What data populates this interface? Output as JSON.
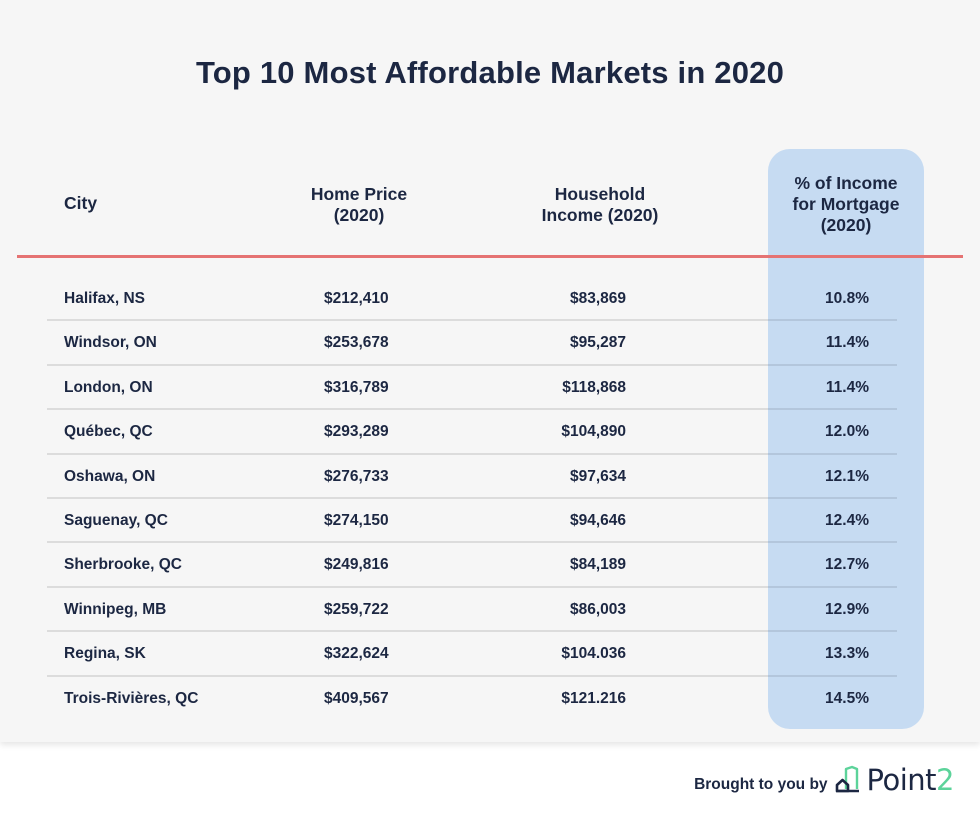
{
  "title": "Top 10 Most Affordable Markets in 2020",
  "columns": {
    "city": "City",
    "home_price": [
      "Home Price",
      "(2020)"
    ],
    "household_income": [
      "Household",
      "Income (2020)"
    ],
    "pct_income_mortgage": [
      "% of Income",
      "for Mortgage",
      "(2020)"
    ]
  },
  "rows": [
    {
      "city": "Halifax, NS",
      "home_price": "$212,410",
      "household_income": "$83,869",
      "pct": "10.8%"
    },
    {
      "city": "Windsor, ON",
      "home_price": "$253,678",
      "household_income": "$95,287",
      "pct": "11.4%"
    },
    {
      "city": "London, ON",
      "home_price": "$316,789",
      "household_income": "$118,868",
      "pct": "11.4%"
    },
    {
      "city": "Québec, QC",
      "home_price": "$293,289",
      "household_income": "$104,890",
      "pct": "12.0%"
    },
    {
      "city": "Oshawa, ON",
      "home_price": "$276,733",
      "household_income": "$97,634",
      "pct": "12.1%"
    },
    {
      "city": "Saguenay, QC",
      "home_price": "$274,150",
      "household_income": "$94,646",
      "pct": "12.4%"
    },
    {
      "city": "Sherbrooke, QC",
      "home_price": "$249,816",
      "household_income": "$84,189",
      "pct": "12.7%"
    },
    {
      "city": "Winnipeg, MB",
      "home_price": "$259,722",
      "household_income": "$86,003",
      "pct": "12.9%"
    },
    {
      "city": "Regina, SK",
      "home_price": "$322,624",
      "household_income": "$104.036",
      "pct": "13.3%"
    },
    {
      "city": "Trois-Rivières, QC",
      "home_price": "$409,567",
      "household_income": "$121.216",
      "pct": "14.5%"
    }
  ],
  "footer": {
    "text": "Brought to you by",
    "logo_main": "Point",
    "logo_accent": "2",
    "logo_icon": "house-building-icon"
  },
  "colors": {
    "text": "#1c2742",
    "header_rule": "#e57373",
    "highlight_column": "#c6dbf2",
    "logo_accent": "#5cd39a",
    "background": "#f6f6f6"
  },
  "chart_data": {
    "type": "table",
    "title": "Top 10 Most Affordable Markets in 2020",
    "columns": [
      "City",
      "Home Price (2020)",
      "Household Income (2020)",
      "% of Income for Mortgage (2020)"
    ],
    "highlighted_column": "% of Income for Mortgage (2020)",
    "rows": [
      [
        "Halifax, NS",
        "$212,410",
        "$83,869",
        "10.8%"
      ],
      [
        "Windsor, ON",
        "$253,678",
        "$95,287",
        "11.4%"
      ],
      [
        "London, ON",
        "$316,789",
        "$118,868",
        "11.4%"
      ],
      [
        "Québec, QC",
        "$293,289",
        "$104,890",
        "12.0%"
      ],
      [
        "Oshawa, ON",
        "$276,733",
        "$97,634",
        "12.1%"
      ],
      [
        "Saguenay, QC",
        "$274,150",
        "$94,646",
        "12.4%"
      ],
      [
        "Sherbrooke, QC",
        "$249,816",
        "$84,189",
        "12.7%"
      ],
      [
        "Winnipeg, MB",
        "$259,722",
        "$86,003",
        "12.9%"
      ],
      [
        "Regina, SK",
        "$322,624",
        "$104.036",
        "13.3%"
      ],
      [
        "Trois-Rivières, QC",
        "$409,567",
        "$121.216",
        "14.5%"
      ]
    ]
  }
}
